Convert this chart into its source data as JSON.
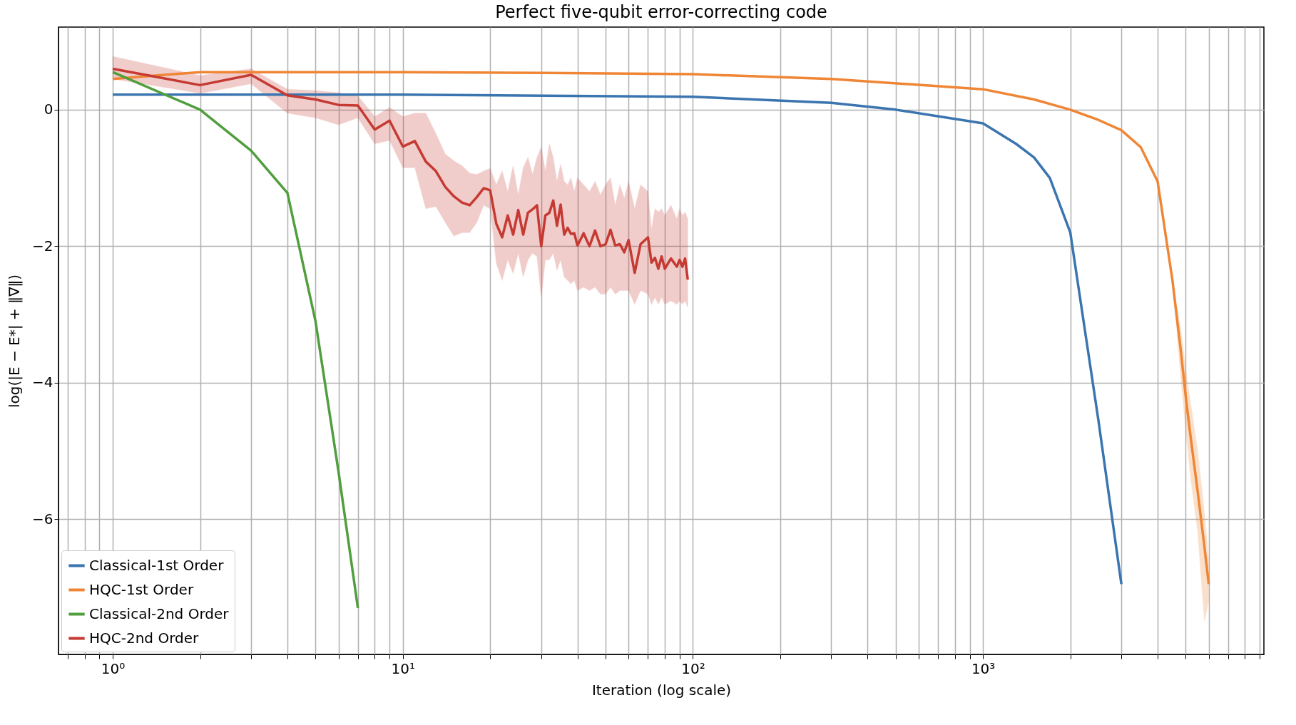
{
  "chart_data": {
    "type": "line",
    "title": "Perfect five-qubit error-correcting code",
    "xlabel": "Iteration (log scale)",
    "ylabel": "log(|E − E*| + ‖∇‖)",
    "log": "x",
    "grid": true,
    "legend": "bottom left",
    "line_style": "solid",
    "marker": "none",
    "xlim": [
      0.65,
      9300
    ],
    "ylim": [
      -7.98,
      1.21
    ],
    "xticks": [
      {
        "value": 0.7,
        "label": null
      },
      {
        "value": 0.8,
        "label": null
      },
      {
        "value": 0.9,
        "label": null
      },
      {
        "value": 1,
        "label": "10⁰"
      },
      {
        "value": 2,
        "label": null
      },
      {
        "value": 3,
        "label": null
      },
      {
        "value": 4,
        "label": null
      },
      {
        "value": 5,
        "label": null
      },
      {
        "value": 6,
        "label": null
      },
      {
        "value": 7,
        "label": null
      },
      {
        "value": 8,
        "label": null
      },
      {
        "value": 9,
        "label": null
      },
      {
        "value": 10,
        "label": "10¹"
      },
      {
        "value": 20,
        "label": null
      },
      {
        "value": 30,
        "label": null
      },
      {
        "value": 40,
        "label": null
      },
      {
        "value": 50,
        "label": null
      },
      {
        "value": 60,
        "label": null
      },
      {
        "value": 70,
        "label": null
      },
      {
        "value": 80,
        "label": null
      },
      {
        "value": 90,
        "label": null
      },
      {
        "value": 100,
        "label": "10²"
      },
      {
        "value": 200,
        "label": null
      },
      {
        "value": 300,
        "label": null
      },
      {
        "value": 400,
        "label": null
      },
      {
        "value": 500,
        "label": null
      },
      {
        "value": 600,
        "label": null
      },
      {
        "value": 700,
        "label": null
      },
      {
        "value": 800,
        "label": null
      },
      {
        "value": 900,
        "label": null
      },
      {
        "value": 1000,
        "label": "10³"
      },
      {
        "value": 2000,
        "label": null
      },
      {
        "value": 3000,
        "label": null
      },
      {
        "value": 4000,
        "label": null
      },
      {
        "value": 5000,
        "label": null
      },
      {
        "value": 6000,
        "label": null
      },
      {
        "value": 7000,
        "label": null
      },
      {
        "value": 8000,
        "label": null
      },
      {
        "value": 9000,
        "label": null
      }
    ],
    "yticks": [
      {
        "value": -6,
        "label": "−6"
      },
      {
        "value": -4,
        "label": "−4"
      },
      {
        "value": -2,
        "label": "−2"
      },
      0
    ],
    "series": [
      {
        "name": "Classical-1st Order",
        "color": "#3b75af",
        "x": [
          1,
          10,
          100,
          300,
          500,
          1000,
          1300,
          1500,
          1700,
          2000,
          2500,
          3000
        ],
        "values": [
          0.22,
          0.22,
          0.19,
          0.1,
          0.0,
          -0.2,
          -0.5,
          -0.7,
          -1.0,
          -1.8,
          -4.55,
          -6.95
        ]
      },
      {
        "name": "HQC-1st Order",
        "color": "#ef8636",
        "x": [
          1,
          2,
          5,
          10,
          30,
          100,
          300,
          1000,
          1500,
          2000,
          2500,
          3000,
          3500,
          4000,
          4500,
          4800,
          5000,
          5200,
          5500,
          5800,
          6000
        ],
        "values": [
          0.45,
          0.55,
          0.55,
          0.55,
          0.54,
          0.52,
          0.45,
          0.3,
          0.15,
          0.0,
          -0.15,
          -0.3,
          -0.55,
          -1.05,
          -2.5,
          -3.5,
          -4.2,
          -4.8,
          -5.6,
          -6.4,
          -6.95
        ],
        "lower": [
          0.45,
          0.55,
          0.55,
          0.55,
          0.54,
          0.52,
          0.45,
          0.3,
          0.15,
          0.0,
          -0.15,
          -0.3,
          -0.55,
          -1.05,
          -2.5,
          -3.9,
          -4.7,
          -5.4,
          -6.2,
          -7.5,
          -7.2
        ],
        "upper": [
          0.45,
          0.55,
          0.55,
          0.55,
          0.54,
          0.52,
          0.45,
          0.3,
          0.15,
          0.0,
          -0.15,
          -0.3,
          -0.55,
          -1.05,
          -2.5,
          -3.2,
          -3.8,
          -4.3,
          -5.0,
          -5.9,
          -6.6
        ]
      },
      {
        "name": "Classical-2nd Order",
        "color": "#519e3e",
        "x": [
          1,
          2,
          3,
          4,
          5,
          6,
          7
        ],
        "values": [
          0.55,
          0.0,
          -0.6,
          -1.22,
          -3.1,
          -5.3,
          -7.3
        ]
      },
      {
        "name": "HQC-2nd Order",
        "color": "#c53a32",
        "x": [
          1,
          2,
          3,
          4,
          5,
          6,
          7,
          8,
          9,
          10,
          11,
          12,
          13,
          14,
          15,
          16,
          17,
          18,
          19,
          20,
          21,
          22,
          23,
          24,
          25,
          26,
          27,
          28,
          29,
          30,
          31,
          32,
          33,
          34,
          35,
          36,
          37,
          38,
          39,
          40,
          42,
          44,
          46,
          48,
          50,
          52,
          54,
          56,
          58,
          60,
          63,
          66,
          70,
          72,
          74,
          76,
          78,
          80,
          84,
          88,
          90,
          92,
          94,
          96
        ],
        "values": [
          0.6,
          0.36,
          0.51,
          0.21,
          0.15,
          0.07,
          0.06,
          -0.29,
          -0.16,
          -0.54,
          -0.46,
          -0.76,
          -0.9,
          -1.13,
          -1.27,
          -1.36,
          -1.4,
          -1.28,
          -1.15,
          -1.18,
          -1.67,
          -1.87,
          -1.55,
          -1.83,
          -1.47,
          -1.83,
          -1.51,
          -1.46,
          -1.4,
          -2.0,
          -1.55,
          -1.51,
          -1.33,
          -1.7,
          -1.39,
          -1.83,
          -1.73,
          -1.82,
          -1.81,
          -1.99,
          -1.81,
          -2.0,
          -1.77,
          -2.0,
          -1.97,
          -1.76,
          -1.99,
          -1.97,
          -2.09,
          -1.91,
          -2.39,
          -1.97,
          -1.87,
          -2.24,
          -2.17,
          -2.33,
          -2.15,
          -2.33,
          -2.18,
          -2.3,
          -2.2,
          -2.3,
          -2.18,
          -2.49
        ],
        "lower": [
          0.45,
          0.24,
          0.38,
          -0.05,
          -0.12,
          -0.22,
          -0.12,
          -0.5,
          -0.45,
          -0.85,
          -0.85,
          -1.45,
          -1.42,
          -1.65,
          -1.85,
          -1.8,
          -1.8,
          -1.65,
          -1.4,
          -1.45,
          -2.25,
          -2.5,
          -2.2,
          -2.4,
          -2.1,
          -2.45,
          -2.2,
          -2.1,
          -2.15,
          -2.75,
          -2.2,
          -2.2,
          -2.1,
          -2.35,
          -2.2,
          -2.45,
          -2.5,
          -2.55,
          -2.5,
          -2.65,
          -2.6,
          -2.65,
          -2.6,
          -2.7,
          -2.7,
          -2.6,
          -2.7,
          -2.65,
          -2.65,
          -2.65,
          -2.85,
          -2.65,
          -2.7,
          -2.85,
          -2.75,
          -2.85,
          -2.75,
          -2.85,
          -2.8,
          -2.85,
          -2.8,
          -2.85,
          -2.8,
          -2.9
        ],
        "upper": [
          0.78,
          0.5,
          0.6,
          0.3,
          0.28,
          0.25,
          0.2,
          -0.1,
          0.03,
          -0.1,
          -0.05,
          -0.05,
          -0.35,
          -0.65,
          -0.75,
          -0.82,
          -0.93,
          -0.95,
          -0.9,
          -0.86,
          -1.1,
          -0.9,
          -1.2,
          -0.82,
          -1.25,
          -0.85,
          -0.7,
          -0.95,
          -0.7,
          -0.55,
          -0.9,
          -0.5,
          -0.7,
          -1.05,
          -0.8,
          -1.05,
          -1.1,
          -1.0,
          -1.2,
          -1.0,
          -1.1,
          -1.2,
          -1.05,
          -1.25,
          -1.1,
          -1.0,
          -1.4,
          -1.1,
          -1.3,
          -1.05,
          -1.45,
          -1.1,
          -1.2,
          -1.75,
          -1.45,
          -1.5,
          -1.45,
          -1.55,
          -1.4,
          -1.6,
          -1.45,
          -1.55,
          -1.5,
          -1.6
        ]
      }
    ]
  }
}
